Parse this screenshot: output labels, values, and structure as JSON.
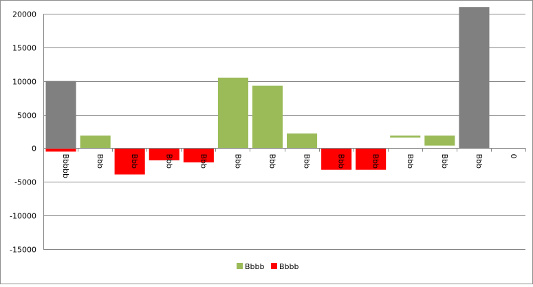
{
  "chart_data": {
    "type": "bar",
    "variant": "waterfall",
    "ylim": [
      -15000,
      20000
    ],
    "yticks": [
      20000,
      15000,
      10000,
      5000,
      0,
      -5000,
      -10000,
      -15000
    ],
    "grid": true,
    "legend_placement": "bottom-center",
    "categories": [
      "Bbbbb",
      "Bbb",
      "Bbb",
      "Bbb",
      "Bbb",
      "Bbb",
      "Bbb",
      "Bbb",
      "Bbb",
      "Bbb",
      "Bbb",
      "Bbb",
      "Bbb",
      "0"
    ],
    "bars": [
      {
        "category": "Bbbbb",
        "kind": "total",
        "from": 0,
        "to": 10000
      },
      {
        "category": "Bbbbb",
        "kind": "negative",
        "from": 0,
        "to": -500
      },
      {
        "category": "Bbb",
        "kind": "positive",
        "from": 0,
        "to": 1900
      },
      {
        "category": "Bbb",
        "kind": "negative",
        "from": 0,
        "to": -3900
      },
      {
        "category": "Bbb",
        "kind": "negative",
        "from": 0,
        "to": -1800
      },
      {
        "category": "Bbb",
        "kind": "negative",
        "from": 0,
        "to": -2100
      },
      {
        "category": "Bbb",
        "kind": "positive",
        "from": 0,
        "to": 10500
      },
      {
        "category": "Bbb",
        "kind": "positive",
        "from": 0,
        "to": 9300
      },
      {
        "category": "Bbb",
        "kind": "positive",
        "from": 0,
        "to": 2200
      },
      {
        "category": "Bbb",
        "kind": "negative",
        "from": 0,
        "to": -3200
      },
      {
        "category": "Bbb",
        "kind": "negative",
        "from": 0,
        "to": -3200
      },
      {
        "category": "Bbb",
        "kind": "positive",
        "from": 1600,
        "to": 1900
      },
      {
        "category": "Bbb",
        "kind": "positive",
        "from": 400,
        "to": 1900
      },
      {
        "category": "0",
        "kind": "total",
        "from": 0,
        "to": 21000
      }
    ],
    "series": [
      {
        "name": "Bbbb",
        "kind": "positive",
        "color": "#9bbb59"
      },
      {
        "name": "Bbbb",
        "kind": "negative",
        "color": "#ff0000"
      }
    ],
    "colors": {
      "total": "#808080",
      "positive": "#9bbb59",
      "negative": "#ff0000",
      "grid": "#868686"
    }
  }
}
